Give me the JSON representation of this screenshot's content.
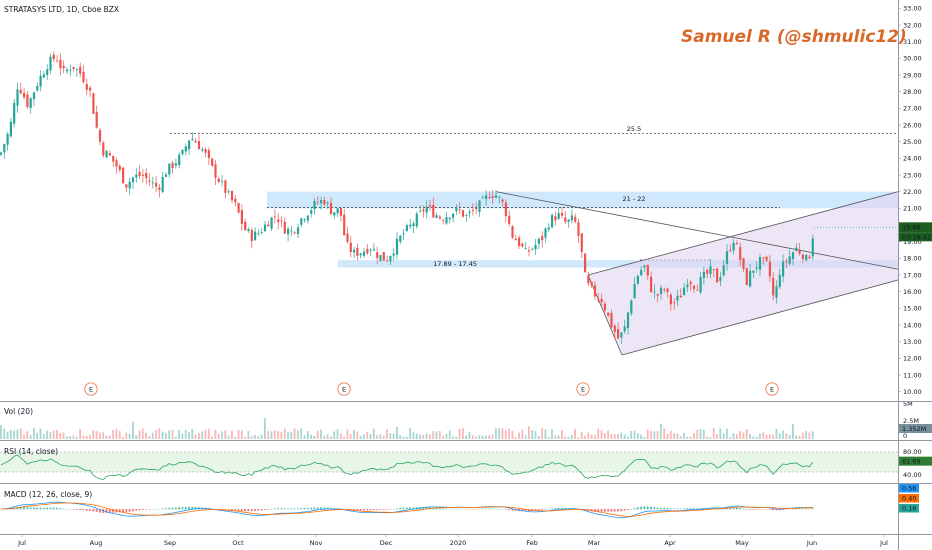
{
  "header": {
    "title": "STRATASYS LTD, 1D, Cboe BZX"
  },
  "author": "Samuel R (@shmulic12)",
  "colors": {
    "up": "#26a69a",
    "down": "#ef5350",
    "zone": "#bbdefb",
    "channel": "#e1d5f0",
    "macd_line": "#2196f3",
    "signal_line": "#ff6d00",
    "rsi_line": "#26a65b",
    "author": "#d9692b"
  },
  "chart_data": {
    "type": "candlestick",
    "ylim": [
      9.5,
      33.5
    ],
    "y_ticks": [
      "33.00",
      "32.00",
      "31.00",
      "30.00",
      "29.00",
      "28.00",
      "27.00",
      "26.00",
      "25.00",
      "24.00",
      "23.00",
      "22.00",
      "21.00",
      "20.00",
      "19.00",
      "18.00",
      "17.00",
      "16.00",
      "15.00",
      "14.00",
      "13.00",
      "12.00",
      "11.00",
      "10.00"
    ],
    "x_ticks": [
      "Jul",
      "Aug",
      "Sep",
      "Oct",
      "Nov",
      "Dec",
      "2020",
      "Feb",
      "Mar",
      "Apr",
      "May",
      "Jun",
      "Jul"
    ],
    "last_price": "19.86",
    "countdown": "03:18:42",
    "levels": [
      {
        "label": "25.5",
        "value": 25.5
      },
      {
        "label": "21 - 22",
        "low": 21.0,
        "high": 22.0
      },
      {
        "label": "17.89 - 17.45",
        "low": 17.45,
        "high": 17.89
      }
    ],
    "earnings_marker": "E",
    "close_path": [
      [
        0,
        24.2
      ],
      [
        10,
        25.8
      ],
      [
        18,
        28.5
      ],
      [
        28,
        27.2
      ],
      [
        38,
        28.6
      ],
      [
        48,
        29.7
      ],
      [
        56,
        30.1
      ],
      [
        64,
        29.1
      ],
      [
        72,
        29.6
      ],
      [
        82,
        29.0
      ],
      [
        90,
        28.0
      ],
      [
        96,
        26.0
      ],
      [
        102,
        24.5
      ],
      [
        110,
        24.1
      ],
      [
        118,
        23.4
      ],
      [
        126,
        22.4
      ],
      [
        134,
        22.9
      ],
      [
        142,
        23.0
      ],
      [
        150,
        22.6
      ],
      [
        158,
        22.2
      ],
      [
        166,
        23.2
      ],
      [
        174,
        23.7
      ],
      [
        182,
        24.2
      ],
      [
        190,
        25.3
      ],
      [
        196,
        25.0
      ],
      [
        204,
        24.4
      ],
      [
        212,
        23.4
      ],
      [
        220,
        22.6
      ],
      [
        228,
        21.8
      ],
      [
        236,
        21.1
      ],
      [
        244,
        19.8
      ],
      [
        252,
        19.3
      ],
      [
        260,
        19.6
      ],
      [
        268,
        20.2
      ],
      [
        276,
        20.6
      ],
      [
        284,
        19.8
      ],
      [
        292,
        19.6
      ],
      [
        300,
        20.3
      ],
      [
        308,
        20.8
      ],
      [
        316,
        21.3
      ],
      [
        324,
        21.5
      ],
      [
        332,
        20.8
      ],
      [
        340,
        20.9
      ],
      [
        346,
        18.8
      ],
      [
        354,
        18.3
      ],
      [
        362,
        18.4
      ],
      [
        370,
        18.7
      ],
      [
        378,
        18.2
      ],
      [
        386,
        17.9
      ],
      [
        394,
        18.6
      ],
      [
        402,
        19.4
      ],
      [
        410,
        19.9
      ],
      [
        418,
        20.5
      ],
      [
        426,
        21.1
      ],
      [
        434,
        20.7
      ],
      [
        442,
        20.4
      ],
      [
        450,
        20.7
      ],
      [
        458,
        20.9
      ],
      [
        466,
        20.5
      ],
      [
        474,
        20.9
      ],
      [
        482,
        21.3
      ],
      [
        490,
        21.9
      ],
      [
        496,
        21.8
      ],
      [
        504,
        21.2
      ],
      [
        512,
        19.4
      ],
      [
        518,
        19.0
      ],
      [
        526,
        18.3
      ],
      [
        534,
        18.7
      ],
      [
        542,
        19.2
      ],
      [
        550,
        20.3
      ],
      [
        558,
        20.6
      ],
      [
        566,
        20.1
      ],
      [
        574,
        20.4
      ],
      [
        580,
        19.0
      ],
      [
        586,
        16.5
      ],
      [
        594,
        15.9
      ],
      [
        602,
        15.5
      ],
      [
        610,
        14.2
      ],
      [
        618,
        13.2
      ],
      [
        624,
        13.6
      ],
      [
        630,
        15.3
      ],
      [
        636,
        16.8
      ],
      [
        644,
        17.6
      ],
      [
        650,
        16.3
      ],
      [
        656,
        15.7
      ],
      [
        664,
        16.2
      ],
      [
        672,
        15.2
      ],
      [
        680,
        15.7
      ],
      [
        688,
        16.8
      ],
      [
        696,
        16.3
      ],
      [
        704,
        16.9
      ],
      [
        712,
        17.3
      ],
      [
        718,
        16.6
      ],
      [
        726,
        18.1
      ],
      [
        734,
        19.2
      ],
      [
        740,
        18.0
      ],
      [
        746,
        16.5
      ],
      [
        752,
        17.3
      ],
      [
        760,
        17.8
      ],
      [
        768,
        17.6
      ],
      [
        774,
        15.4
      ],
      [
        780,
        17.3
      ],
      [
        788,
        18.0
      ],
      [
        796,
        18.6
      ],
      [
        804,
        18.2
      ],
      [
        808,
        17.7
      ],
      [
        814,
        19.8
      ]
    ],
    "volume": {
      "label": "Vol (20)",
      "ticks": [
        "5M",
        "2.5M",
        "0"
      ],
      "last": "1.352M"
    },
    "rsi": {
      "label": "RSI (14, close)",
      "ticks": [
        "80.00",
        "40.00"
      ],
      "last": "61.69"
    },
    "macd": {
      "label": "MACD (12, 26, close, 9)",
      "values": [
        "0.56",
        "0.40",
        "0.16"
      ]
    }
  }
}
